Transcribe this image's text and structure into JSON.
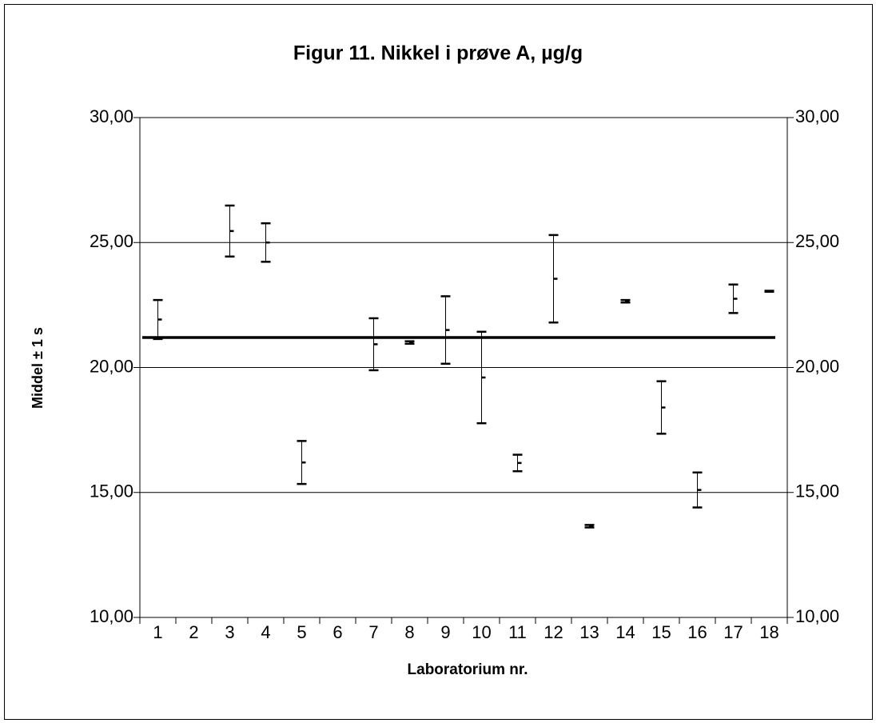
{
  "chart_data": {
    "type": "errorbar",
    "title": "Figur 11. Nikkel i prøve A, µg/g",
    "x_label": "Laboratorium nr.",
    "y_label": "Middel ± 1 s",
    "categories": [
      "1",
      "2",
      "3",
      "4",
      "5",
      "6",
      "7",
      "8",
      "9",
      "10",
      "11",
      "12",
      "13",
      "14",
      "15",
      "16",
      "17",
      "18"
    ],
    "values": [
      21.92,
      null,
      25.46,
      25.0,
      16.2,
      null,
      20.93,
      21.0,
      21.5,
      19.6,
      16.18,
      23.55,
      13.65,
      22.65,
      18.4,
      15.1,
      22.75,
      23.05
    ],
    "errors": [
      0.78,
      null,
      1.02,
      0.77,
      0.86,
      null,
      1.04,
      0.05,
      1.35,
      1.83,
      0.33,
      1.75,
      0.05,
      0.05,
      1.05,
      0.7,
      0.57,
      0.02
    ],
    "reference_value": 21.2,
    "color": "#000000",
    "ylim": [
      10,
      30
    ],
    "yticks": [
      {
        "value": 10,
        "label": "10,00"
      },
      {
        "value": 15,
        "label": "15,00"
      },
      {
        "value": 20,
        "label": "20,00"
      },
      {
        "value": 25,
        "label": "25,00"
      },
      {
        "value": 30,
        "label": "30,00"
      }
    ],
    "y2lim": [
      10,
      30
    ],
    "y2ticks": [
      {
        "value": 10,
        "label": "10,00"
      },
      {
        "value": 15,
        "label": "15,00"
      },
      {
        "value": 20,
        "label": "20,00"
      },
      {
        "value": 25,
        "label": "25,00"
      },
      {
        "value": 30,
        "label": "30,00"
      }
    ],
    "grid": true
  }
}
